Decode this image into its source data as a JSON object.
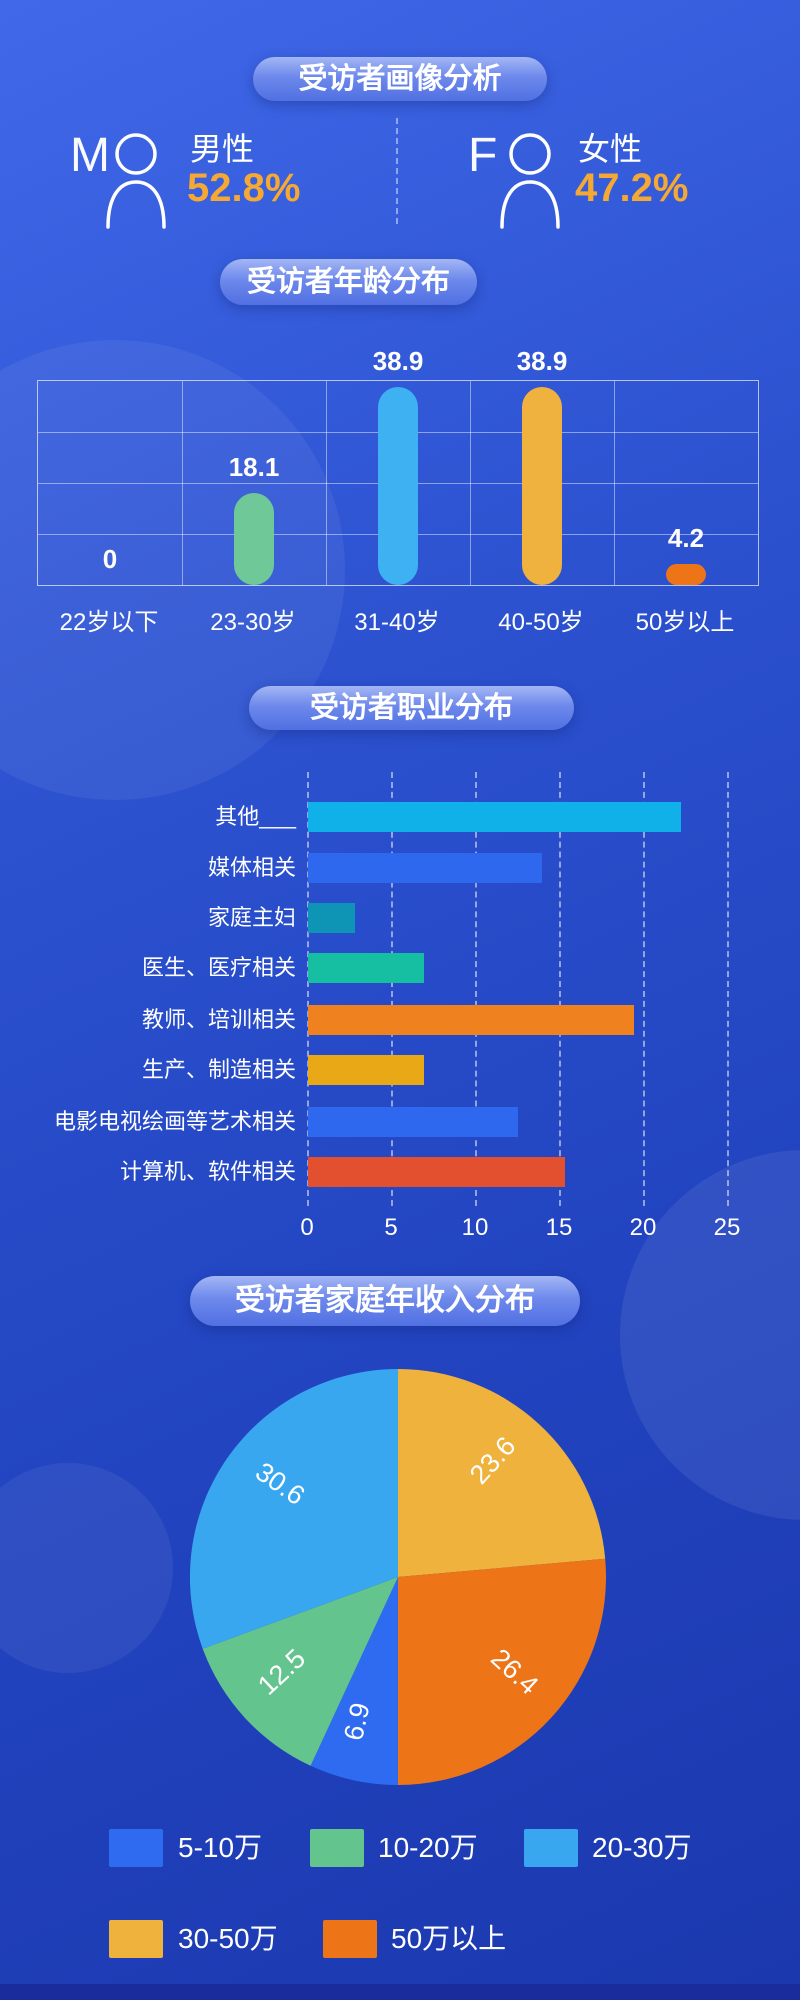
{
  "sections": {
    "profile_title": "受访者画像分析",
    "age_title": "受访者年龄分布",
    "occupation_title": "受访者职业分布",
    "income_title": "受访者家庭年收入分布"
  },
  "gender": {
    "male": {
      "letter": "M",
      "label": "男性",
      "value": "52.8%"
    },
    "female": {
      "letter": "F",
      "label": "女性",
      "value": "47.2%"
    }
  },
  "colors": {
    "accent_value": "#F5A833",
    "background_top": "#4068E8",
    "background_bottom": "#1B38AE",
    "badge": "#6D89EC",
    "footer_strip": "#1A2C9C"
  },
  "chart_data": [
    {
      "type": "bar",
      "title": "受访者年龄分布",
      "categories": [
        "22岁以下",
        "23-30岁",
        "31-40岁",
        "40-50岁",
        "50岁以上"
      ],
      "values": [
        0,
        18.1,
        38.9,
        38.9,
        4.2
      ],
      "colors": [
        "#6FC897",
        "#6FC897",
        "#3DB1F1",
        "#F0B23F",
        "#EE7418"
      ],
      "xlabel": "",
      "ylabel": "",
      "ylim": [
        0,
        40
      ],
      "grid": true,
      "value_labels": true
    },
    {
      "type": "bar",
      "orientation": "horizontal",
      "title": "受访者职业分布",
      "categories": [
        "其他___",
        "媒体相关",
        "家庭主妇",
        "医生、医疗相关",
        "教师、培训相关",
        "生产、制造相关",
        "电影电视绘画等艺术相关",
        "计算机、软件相关"
      ],
      "values": [
        22.2,
        13.9,
        2.8,
        6.9,
        19.4,
        6.9,
        12.5,
        15.3
      ],
      "colors": [
        "#10B0E8",
        "#2D68EE",
        "#0E95B5",
        "#17BFA2",
        "#F0811F",
        "#E9A816",
        "#2D68EE",
        "#E2502F"
      ],
      "xlabel": "",
      "ylabel": "",
      "xlim": [
        0,
        25
      ],
      "xticks": [
        0,
        5,
        10,
        15,
        20,
        25
      ],
      "gridlines": "dashed-vertical"
    },
    {
      "type": "pie",
      "title": "受访者家庭年收入分布",
      "start_angle_from_top_deg": 0,
      "direction": "clockwise",
      "slices": [
        {
          "label": "30-50万",
          "value": 23.6,
          "color": "#EEB23D"
        },
        {
          "label": "50万以上",
          "value": 26.4,
          "color": "#EE7418"
        },
        {
          "label": "5-10万",
          "value": 6.9,
          "color": "#2E6BF0"
        },
        {
          "label": "10-20万",
          "value": 12.5,
          "color": "#64C48E"
        },
        {
          "label": "20-30万",
          "value": 30.6,
          "color": "#38A7F0"
        }
      ],
      "legend": [
        {
          "label": "5-10万",
          "color": "#2E6BF0"
        },
        {
          "label": "10-20万",
          "color": "#64C48E"
        },
        {
          "label": "20-30万",
          "color": "#38A7F0"
        },
        {
          "label": "30-50万",
          "color": "#EEB23D"
        },
        {
          "label": "50万以上",
          "color": "#EE7418"
        }
      ],
      "legend_position": "bottom"
    }
  ]
}
